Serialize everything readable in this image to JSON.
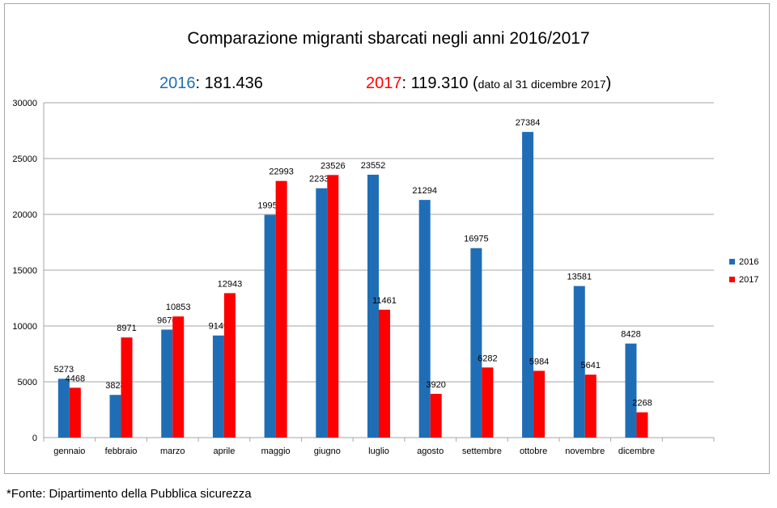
{
  "header": {
    "title": "Comparazione migranti sbarcati negli anni 2016/2017",
    "total_2016_year": "2016",
    "total_2016_sep": ":",
    "total_2016_value": "181.436",
    "total_2017_year": "2017",
    "total_2017_sep": ":",
    "total_2017_value": "119.310",
    "total_2017_note_open": "(",
    "total_2017_note": "dato al 31 dicembre 2017",
    "total_2017_note_close": ")"
  },
  "footer": {
    "source": "*Fonte: Dipartimento della Pubblica sicurezza"
  },
  "colors": {
    "s2016": "#1f6eb5",
    "s2017": "#ff0000",
    "grid": "#a6a6a6",
    "year2016_text": "#1f6eb5",
    "year2017_text": "#ff0000"
  },
  "chart_data": {
    "type": "bar",
    "categories": [
      "gennaio",
      "febbraio",
      "marzo",
      "aprile",
      "maggio",
      "giugno",
      "luglio",
      "agosto",
      "settembre",
      "ottobre",
      "novembre",
      "dicembre"
    ],
    "series": [
      {
        "name": "2016",
        "values": [
          5273,
          3828,
          9676,
          9149,
          19957,
          22339,
          23552,
          21294,
          16975,
          27384,
          13581,
          8428
        ]
      },
      {
        "name": "2017",
        "values": [
          4468,
          8971,
          10853,
          12943,
          22993,
          23526,
          11461,
          3920,
          6282,
          5984,
          5641,
          2268
        ]
      }
    ],
    "ylim": [
      0,
      30000
    ],
    "yticks": [
      0,
      5000,
      10000,
      15000,
      20000,
      25000,
      30000
    ],
    "grid": true,
    "legend": "right"
  }
}
